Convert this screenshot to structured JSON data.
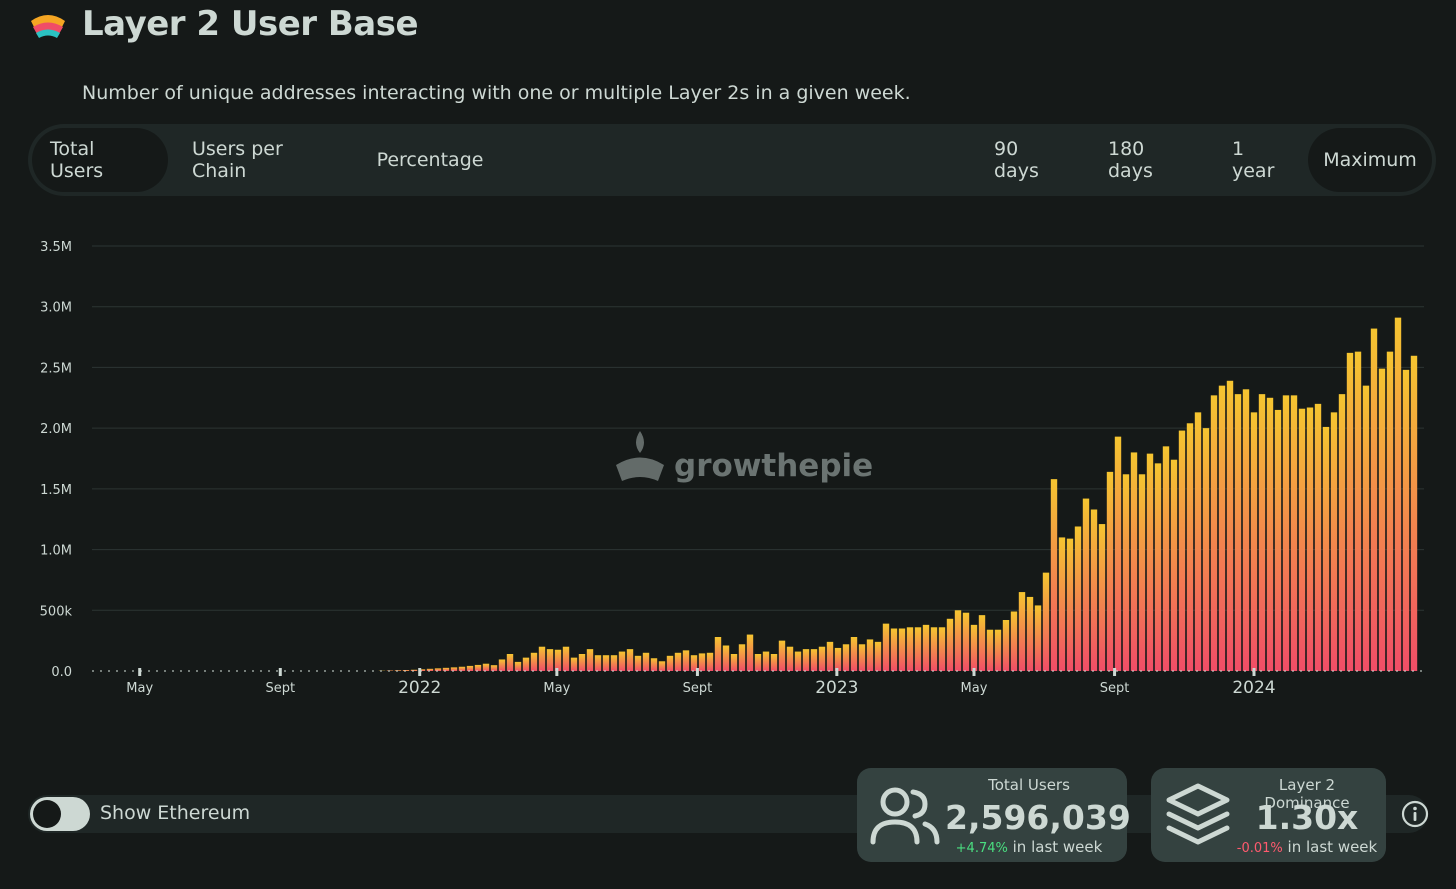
{
  "header": {
    "title": "Layer 2 User Base",
    "subtitle": "Number of unique addresses interacting with one or multiple Layer 2s in a given week."
  },
  "tabs": [
    {
      "label": "Total Users",
      "active": true
    },
    {
      "label": "Users per Chain",
      "active": false
    },
    {
      "label": "Percentage",
      "active": false
    }
  ],
  "ranges": [
    {
      "label": "90 days",
      "active": false
    },
    {
      "label": "180 days",
      "active": false
    },
    {
      "label": "1 year",
      "active": false
    },
    {
      "label": "Maximum",
      "active": true
    }
  ],
  "watermark": "growthepie",
  "colors": {
    "bar_top": "#f5c530",
    "bar_bottom": "#f04d67",
    "background": "#151918",
    "panel": "#1f2726",
    "card": "#344240",
    "positive": "#4ade80",
    "negative": "#ff5a6e"
  },
  "toggle": {
    "label": "Show Ethereum",
    "on": false
  },
  "cards": [
    {
      "label": "Total Users",
      "value": "2,596,039",
      "change": "+4.74%",
      "change_suffix": "in last week",
      "icon": "users-icon"
    },
    {
      "label": "Layer 2 Dominance",
      "value": "1.30x",
      "change": "-0.01%",
      "change_suffix": "in last week",
      "icon": "layers-icon"
    }
  ],
  "chart_data": {
    "type": "bar",
    "title": "",
    "xlabel": "",
    "ylabel": "",
    "ylim": [
      0,
      3500000
    ],
    "yticks": [
      {
        "value": 0,
        "label": "0.0"
      },
      {
        "value": 500000,
        "label": "500k"
      },
      {
        "value": 1000000,
        "label": "1.0M"
      },
      {
        "value": 1500000,
        "label": "1.5M"
      },
      {
        "value": 2000000,
        "label": "2.0M"
      },
      {
        "value": 2500000,
        "label": "2.5M"
      },
      {
        "value": 3000000,
        "label": "3.0M"
      },
      {
        "value": 3500000,
        "label": "3.5M"
      }
    ],
    "xticks": [
      {
        "date": "2021-05-01",
        "label": "May",
        "major": false
      },
      {
        "date": "2021-09-01",
        "label": "Sept",
        "major": false
      },
      {
        "date": "2022-01-01",
        "label": "2022",
        "major": true
      },
      {
        "date": "2022-05-01",
        "label": "May",
        "major": false
      },
      {
        "date": "2022-09-01",
        "label": "Sept",
        "major": false
      },
      {
        "date": "2023-01-01",
        "label": "2023",
        "major": true
      },
      {
        "date": "2023-05-01",
        "label": "May",
        "major": false
      },
      {
        "date": "2023-09-01",
        "label": "Sept",
        "major": false
      },
      {
        "date": "2024-01-01",
        "label": "2024",
        "major": true
      }
    ],
    "grid": true,
    "legend": "none",
    "first_week": "2021-03-29",
    "interval": "weekly",
    "values": [
      1000,
      1000,
      1000,
      1000,
      1000,
      1000,
      1000,
      1000,
      1000,
      1000,
      1000,
      1000,
      1000,
      1000,
      1000,
      1000,
      1000,
      1000,
      1000,
      1000,
      1000,
      1000,
      1000,
      1000,
      1000,
      1000,
      1000,
      1000,
      1000,
      1000,
      1000,
      1000,
      1000,
      1000,
      1000,
      2000,
      4000,
      6000,
      8000,
      10000,
      14000,
      18000,
      22000,
      26000,
      30000,
      35000,
      42000,
      50000,
      60000,
      48000,
      95000,
      140000,
      75000,
      110000,
      150000,
      200000,
      180000,
      175000,
      200000,
      110000,
      140000,
      180000,
      130000,
      130000,
      130000,
      160000,
      180000,
      125000,
      150000,
      105000,
      80000,
      125000,
      150000,
      170000,
      130000,
      145000,
      150000,
      280000,
      210000,
      140000,
      220000,
      300000,
      140000,
      160000,
      140000,
      250000,
      200000,
      160000,
      180000,
      180000,
      200000,
      240000,
      190000,
      220000,
      280000,
      220000,
      260000,
      240000,
      390000,
      350000,
      350000,
      360000,
      360000,
      380000,
      360000,
      360000,
      430000,
      500000,
      480000,
      380000,
      460000,
      340000,
      340000,
      420000,
      490000,
      650000,
      610000,
      540000,
      810000,
      1580000,
      1100000,
      1090000,
      1190000,
      1420000,
      1330000,
      1210000,
      1640000,
      1930000,
      1620000,
      1800000,
      1620000,
      1790000,
      1710000,
      1850000,
      1740000,
      1980000,
      2040000,
      2130000,
      2000000,
      2270000,
      2350000,
      2390000,
      2280000,
      2320000,
      2130000,
      2280000,
      2250000,
      2150000,
      2270000,
      2270000,
      2160000,
      2170000,
      2200000,
      2010000,
      2130000,
      2280000,
      2620000,
      2630000,
      2350000,
      2820000,
      2490000,
      2630000,
      2910000,
      2480000,
      2596039
    ]
  }
}
